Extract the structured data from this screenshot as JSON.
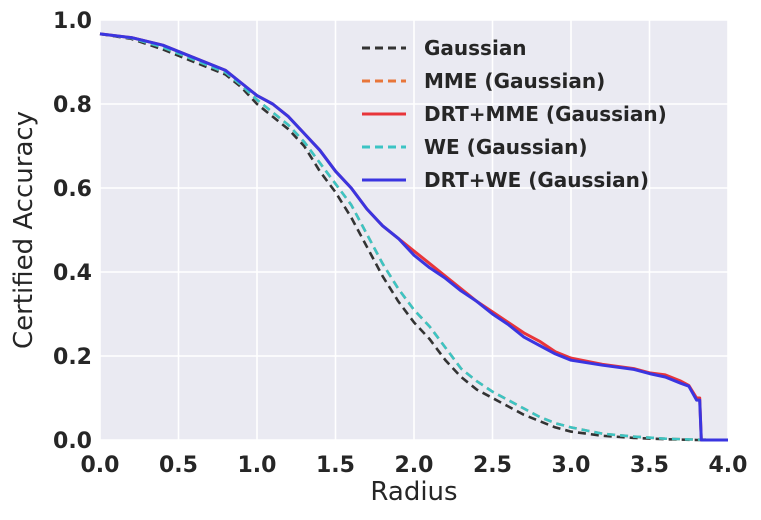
{
  "chart_data": {
    "type": "line",
    "xlabel": "Radius",
    "ylabel": "Certified Accuracy",
    "xlim": [
      0.0,
      4.0
    ],
    "ylim": [
      0.0,
      1.0
    ],
    "xticks": [
      "0.0",
      "0.5",
      "1.0",
      "1.5",
      "2.0",
      "2.5",
      "3.0",
      "3.5",
      "4.0"
    ],
    "yticks": [
      "0.0",
      "0.2",
      "0.4",
      "0.6",
      "0.8",
      "1.0"
    ],
    "grid": true,
    "legend_position": "top-right",
    "series": [
      {
        "name": "Gaussian",
        "color": "#333333",
        "dash": true,
        "x": [
          0.0,
          0.2,
          0.4,
          0.6,
          0.8,
          0.9,
          1.0,
          1.1,
          1.2,
          1.3,
          1.4,
          1.5,
          1.6,
          1.7,
          1.8,
          1.9,
          2.0,
          2.1,
          2.2,
          2.3,
          2.4,
          2.5,
          2.6,
          2.7,
          2.8,
          2.9,
          3.0,
          3.2,
          3.4,
          3.6,
          3.8,
          4.0
        ],
        "y": [
          0.967,
          0.955,
          0.93,
          0.9,
          0.87,
          0.84,
          0.8,
          0.77,
          0.74,
          0.7,
          0.64,
          0.59,
          0.53,
          0.46,
          0.39,
          0.33,
          0.28,
          0.24,
          0.19,
          0.15,
          0.12,
          0.1,
          0.08,
          0.06,
          0.045,
          0.03,
          0.02,
          0.01,
          0.005,
          0.002,
          0.0,
          0.0
        ]
      },
      {
        "name": "MME (Gaussian)",
        "color": "#e8763a",
        "dash": true,
        "x": [
          0.0,
          0.2,
          0.4,
          0.6,
          0.8,
          0.9,
          1.0,
          1.1,
          1.2,
          1.3,
          1.4,
          1.5,
          1.6,
          1.7,
          1.8,
          1.9,
          2.0,
          2.1,
          2.2,
          2.3,
          2.4,
          2.5,
          2.6,
          2.7,
          2.8,
          2.9,
          3.0,
          3.2,
          3.4,
          3.6,
          3.8,
          4.0
        ],
        "y": [
          0.967,
          0.957,
          0.935,
          0.905,
          0.875,
          0.845,
          0.81,
          0.78,
          0.75,
          0.71,
          0.66,
          0.61,
          0.56,
          0.49,
          0.42,
          0.36,
          0.31,
          0.27,
          0.22,
          0.17,
          0.14,
          0.115,
          0.095,
          0.075,
          0.055,
          0.04,
          0.03,
          0.015,
          0.008,
          0.003,
          0.001,
          0.0
        ]
      },
      {
        "name": "DRT+MME (Gaussian)",
        "color": "#e8353a",
        "dash": false,
        "x": [
          0.0,
          0.2,
          0.4,
          0.6,
          0.8,
          0.9,
          1.0,
          1.1,
          1.2,
          1.3,
          1.4,
          1.5,
          1.6,
          1.7,
          1.8,
          1.9,
          2.0,
          2.1,
          2.2,
          2.3,
          2.4,
          2.5,
          2.6,
          2.7,
          2.8,
          2.9,
          3.0,
          3.2,
          3.4,
          3.5,
          3.6,
          3.7,
          3.75,
          3.8,
          3.82,
          3.83,
          4.0
        ],
        "y": [
          0.967,
          0.958,
          0.94,
          0.91,
          0.88,
          0.85,
          0.82,
          0.8,
          0.77,
          0.73,
          0.69,
          0.64,
          0.6,
          0.55,
          0.51,
          0.48,
          0.45,
          0.42,
          0.39,
          0.36,
          0.33,
          0.305,
          0.28,
          0.255,
          0.235,
          0.21,
          0.195,
          0.18,
          0.17,
          0.16,
          0.155,
          0.14,
          0.13,
          0.1,
          0.1,
          0.0,
          0.0
        ]
      },
      {
        "name": "WE (Gaussian)",
        "color": "#3cc4c4",
        "dash": true,
        "x": [
          0.0,
          0.2,
          0.4,
          0.6,
          0.8,
          0.9,
          1.0,
          1.1,
          1.2,
          1.3,
          1.4,
          1.5,
          1.6,
          1.7,
          1.8,
          1.9,
          2.0,
          2.1,
          2.2,
          2.3,
          2.4,
          2.5,
          2.6,
          2.7,
          2.8,
          2.9,
          3.0,
          3.2,
          3.4,
          3.6,
          3.8,
          4.0
        ],
        "y": [
          0.967,
          0.957,
          0.935,
          0.905,
          0.875,
          0.845,
          0.81,
          0.78,
          0.75,
          0.71,
          0.66,
          0.61,
          0.56,
          0.49,
          0.42,
          0.36,
          0.31,
          0.27,
          0.22,
          0.17,
          0.14,
          0.115,
          0.095,
          0.075,
          0.055,
          0.04,
          0.03,
          0.015,
          0.008,
          0.003,
          0.001,
          0.0
        ]
      },
      {
        "name": "DRT+WE (Gaussian)",
        "color": "#3a35e0",
        "dash": false,
        "x": [
          0.0,
          0.2,
          0.4,
          0.6,
          0.8,
          0.9,
          1.0,
          1.1,
          1.2,
          1.3,
          1.4,
          1.5,
          1.6,
          1.7,
          1.8,
          1.9,
          2.0,
          2.1,
          2.2,
          2.3,
          2.4,
          2.5,
          2.6,
          2.7,
          2.8,
          2.9,
          3.0,
          3.2,
          3.4,
          3.5,
          3.6,
          3.7,
          3.75,
          3.8,
          3.82,
          3.83,
          4.0
        ],
        "y": [
          0.967,
          0.958,
          0.94,
          0.91,
          0.88,
          0.85,
          0.82,
          0.8,
          0.77,
          0.73,
          0.69,
          0.64,
          0.6,
          0.55,
          0.51,
          0.48,
          0.44,
          0.41,
          0.385,
          0.355,
          0.33,
          0.3,
          0.275,
          0.245,
          0.225,
          0.205,
          0.19,
          0.178,
          0.168,
          0.158,
          0.15,
          0.135,
          0.128,
          0.095,
          0.095,
          0.0,
          0.0
        ]
      }
    ]
  }
}
